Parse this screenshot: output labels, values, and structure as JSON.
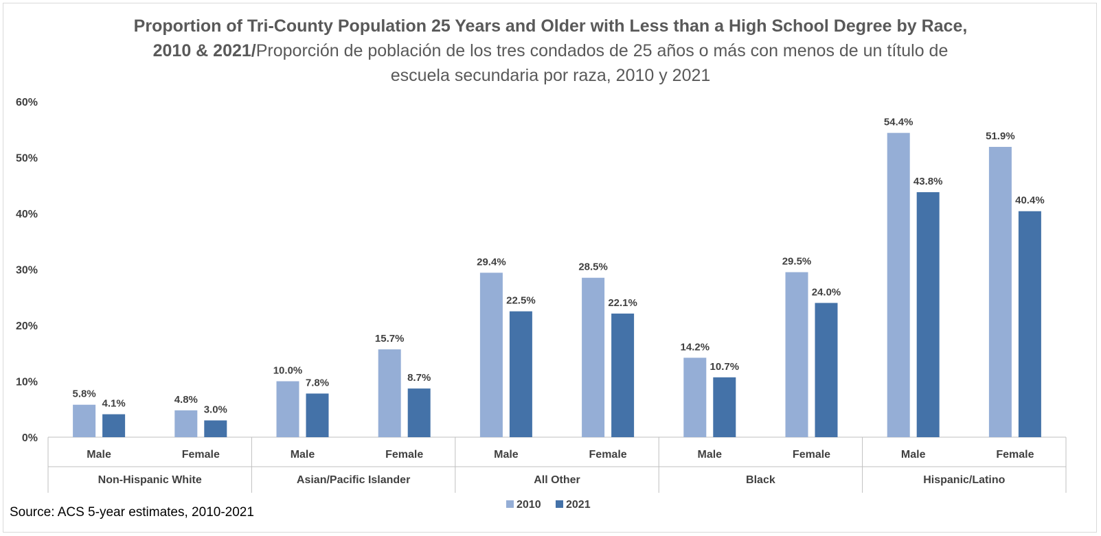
{
  "title": {
    "line1": "Proportion of Tri-County Population 25 Years and Older with Less than a High School Degree by Race,",
    "line2_bold": "2010 & 2021/",
    "line2_rest": "Proporción de población de los tres condados de 25 años o más con menos de un título de",
    "line3": "escuela secundaria por raza, 2010 y 2021"
  },
  "source": "Source: ACS 5-year estimates, 2010-2021",
  "colors": {
    "2010": "#95aed6",
    "2021": "#4472a8"
  },
  "chart_data": {
    "type": "bar",
    "yticks": [
      "0%",
      "10%",
      "20%",
      "30%",
      "40%",
      "50%",
      "60%"
    ],
    "ylim": [
      0,
      60
    ],
    "groups": [
      "Non-Hispanic White",
      "Asian/Pacific Islander",
      "All Other",
      "Black",
      "Hispanic/Latino"
    ],
    "categories": [
      "Male",
      "Female",
      "Male",
      "Female",
      "Male",
      "Female",
      "Male",
      "Female",
      "Male",
      "Female"
    ],
    "series": [
      {
        "name": "2010",
        "values": [
          5.8,
          4.8,
          10.0,
          15.7,
          29.4,
          28.5,
          14.2,
          29.5,
          54.4,
          51.9
        ],
        "labels": [
          "5.8%",
          "4.8%",
          "10.0%",
          "15.7%",
          "29.4%",
          "28.5%",
          "14.2%",
          "29.5%",
          "54.4%",
          "51.9%"
        ]
      },
      {
        "name": "2021",
        "values": [
          4.1,
          3.0,
          7.8,
          8.7,
          22.5,
          22.1,
          10.7,
          24.0,
          43.8,
          40.4
        ],
        "labels": [
          "4.1%",
          "3.0%",
          "7.8%",
          "8.7%",
          "22.5%",
          "22.1%",
          "10.7%",
          "24.0%",
          "43.8%",
          "40.4%"
        ]
      }
    ],
    "legend_position": "bottom",
    "grid": false
  }
}
